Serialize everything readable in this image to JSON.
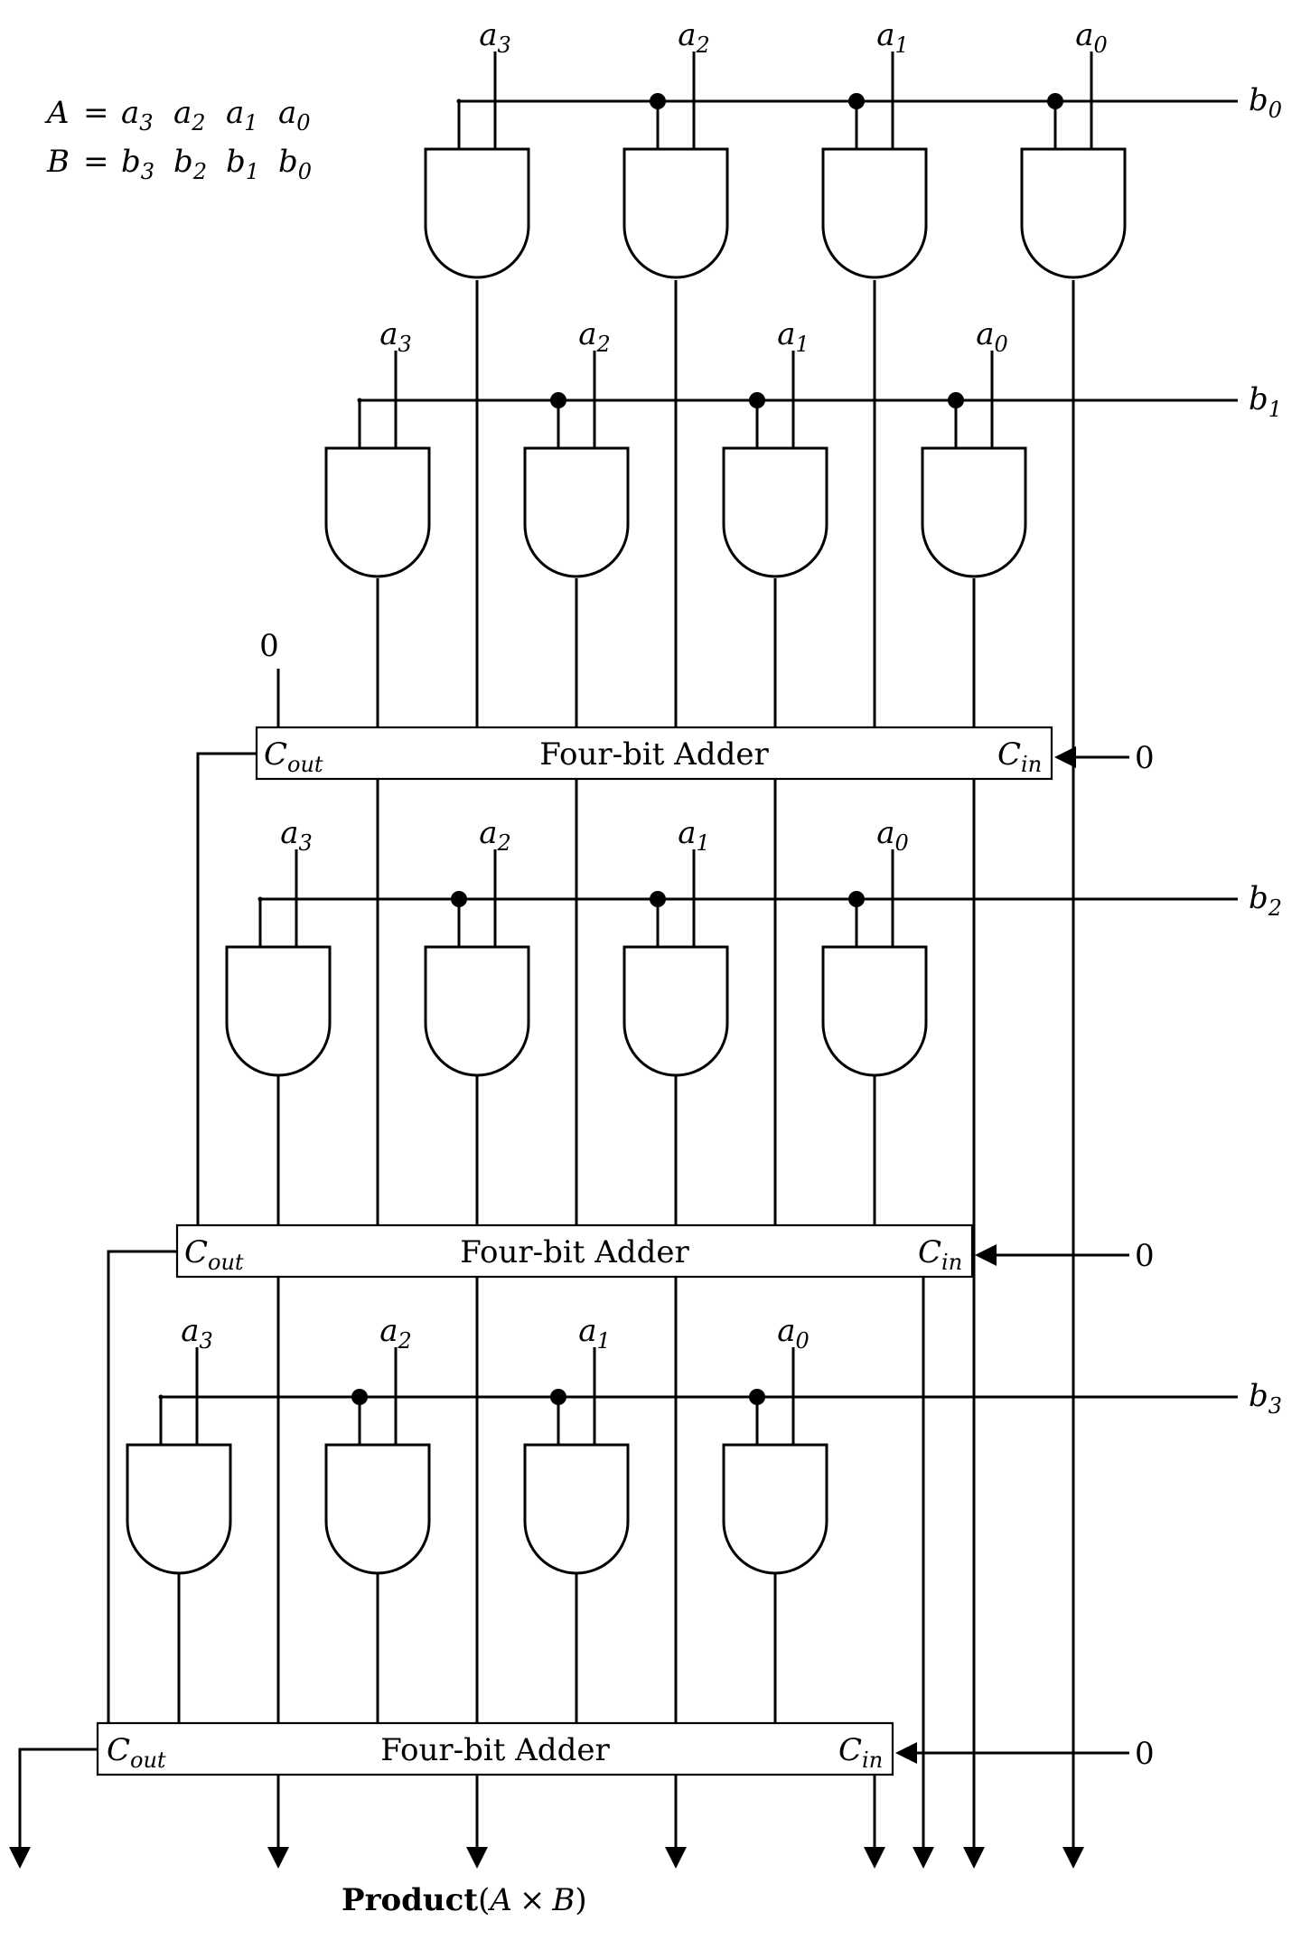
{
  "definitions": {
    "a": {
      "var": "A",
      "eq": "=",
      "bits": [
        {
          "base": "a",
          "sub": "3"
        },
        {
          "base": "a",
          "sub": "2"
        },
        {
          "base": "a",
          "sub": "1"
        },
        {
          "base": "a",
          "sub": "0"
        }
      ]
    },
    "b": {
      "var": "B",
      "eq": "=",
      "bits": [
        {
          "base": "b",
          "sub": "3"
        },
        {
          "base": "b",
          "sub": "2"
        },
        {
          "base": "b",
          "sub": "1"
        },
        {
          "base": "b",
          "sub": "0"
        }
      ]
    }
  },
  "rows": [
    {
      "b": {
        "base": "b",
        "sub": "0"
      },
      "a": [
        {
          "base": "a",
          "sub": "3"
        },
        {
          "base": "a",
          "sub": "2"
        },
        {
          "base": "a",
          "sub": "1"
        },
        {
          "base": "a",
          "sub": "0"
        }
      ]
    },
    {
      "b": {
        "base": "b",
        "sub": "1"
      },
      "a": [
        {
          "base": "a",
          "sub": "3"
        },
        {
          "base": "a",
          "sub": "2"
        },
        {
          "base": "a",
          "sub": "1"
        },
        {
          "base": "a",
          "sub": "0"
        }
      ]
    },
    {
      "b": {
        "base": "b",
        "sub": "2"
      },
      "a": [
        {
          "base": "a",
          "sub": "3"
        },
        {
          "base": "a",
          "sub": "2"
        },
        {
          "base": "a",
          "sub": "1"
        },
        {
          "base": "a",
          "sub": "0"
        }
      ]
    },
    {
      "b": {
        "base": "b",
        "sub": "3"
      },
      "a": [
        {
          "base": "a",
          "sub": "3"
        },
        {
          "base": "a",
          "sub": "2"
        },
        {
          "base": "a",
          "sub": "1"
        },
        {
          "base": "a",
          "sub": "0"
        }
      ]
    }
  ],
  "adders": [
    {
      "title": "Four-bit Adder",
      "cout": {
        "base": "C",
        "sub": "out"
      },
      "cin": {
        "base": "C",
        "sub": "in"
      },
      "cin_value": "0"
    },
    {
      "title": "Four-bit Adder",
      "cout": {
        "base": "C",
        "sub": "out"
      },
      "cin": {
        "base": "C",
        "sub": "in"
      },
      "cin_value": "0"
    },
    {
      "title": "Four-bit Adder",
      "cout": {
        "base": "C",
        "sub": "out"
      },
      "cin": {
        "base": "C",
        "sub": "in"
      },
      "cin_value": "0"
    }
  ],
  "first_adder_msb_input": "0",
  "product": {
    "bold": "Product",
    "paren_open": "(",
    "expr_a": "A",
    "times": "×",
    "expr_b": "B",
    "paren_close": ")"
  }
}
